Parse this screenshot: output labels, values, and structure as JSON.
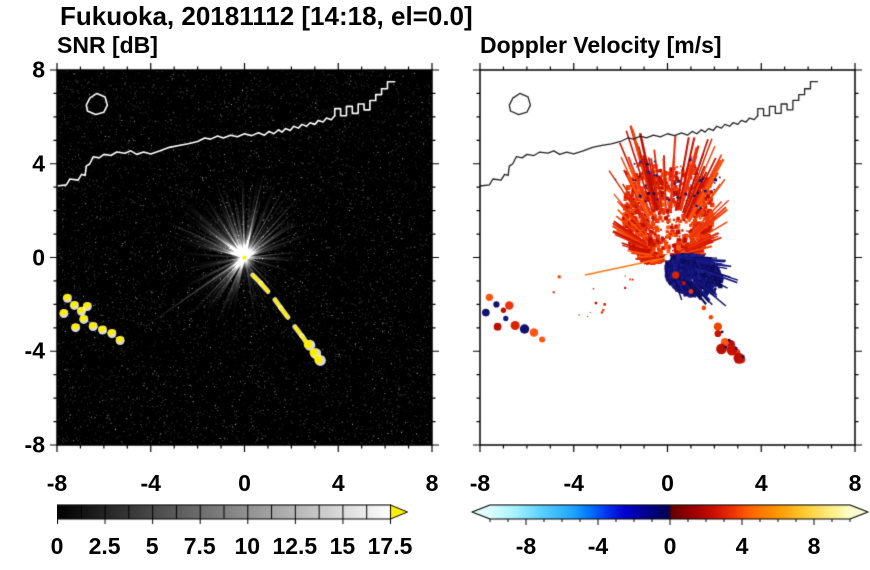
{
  "title": "Fukuoka, 20181112 [14:18, el=0.0]",
  "title_parts": {
    "site": "Fukuoka",
    "date": "20181112",
    "time": "14:18",
    "elevation": "0.0"
  },
  "chart_data": [
    {
      "type": "heatmap",
      "panel": "left",
      "title": "SNR [dB]",
      "xlim": [
        -8,
        8
      ],
      "ylim": [
        -8,
        8
      ],
      "x_ticks": [
        -8,
        -4,
        0,
        4,
        8
      ],
      "y_ticks": [
        8,
        4,
        0,
        -4,
        -8
      ],
      "x_tick_labels": [
        "-8",
        "-4",
        "0",
        "4",
        "8"
      ],
      "y_tick_labels": [
        "8",
        "4",
        "0",
        "-4",
        "-8"
      ],
      "minor_tick_step": 1,
      "background_color": "#000000",
      "colorbar": {
        "min": 0,
        "max": 17.5,
        "tick_labels": [
          "0",
          "2.5",
          "5",
          "7.5",
          "10",
          "12.5",
          "15",
          "17.5"
        ],
        "segment_step": 1.25,
        "stops": [
          {
            "v": 0,
            "c": "#000000"
          },
          {
            "v": 17.5,
            "c": "#ffffff"
          }
        ],
        "over_arrow_color": "#ffef00"
      },
      "features": [
        "radar located at origin (0,0) with bright white radial beam streaks, strongest toward the northern sector and a long thin ray toward (-4.4,-3.1)",
        "speckled dark noise background filling the 16x16 domain",
        "high-SNR yellow echo arc from about (0.35,-0.75) to (3.2,-4.4) with white fringes",
        "yellow coastal clutter patches between (-7.7,-1.7) and (-5.3,-3.5)",
        "white coastline with harbor structures across the top of the panel from y=3 to y=7.5",
        "small island outline near (-6.3, 6.6)"
      ]
    },
    {
      "type": "heatmap",
      "panel": "right",
      "title": "Doppler Velocity [m/s]",
      "xlim": [
        -8,
        8
      ],
      "ylim": [
        -8,
        8
      ],
      "x_ticks": [
        -8,
        -4,
        0,
        4,
        8
      ],
      "x_tick_labels": [
        "-8",
        "-4",
        "0",
        "4",
        "8"
      ],
      "minor_tick_step": 1,
      "background_color": "#ffffff",
      "colorbar": {
        "min": -10,
        "max": 10,
        "tick_labels": [
          "-8",
          "-4",
          "0",
          "4",
          "8"
        ],
        "under_arrow_color": "#dcffff",
        "over_arrow_color": "#ffffd0",
        "stops": [
          {
            "v": -10,
            "c": "#dcffff"
          },
          {
            "v": -8.5,
            "c": "#a0f0ff"
          },
          {
            "v": -7,
            "c": "#55ccff"
          },
          {
            "v": -5.5,
            "c": "#22aaff"
          },
          {
            "v": -4.5,
            "c": "#0077ff"
          },
          {
            "v": -3.5,
            "c": "#0033ee"
          },
          {
            "v": -2.5,
            "c": "#0000cc"
          },
          {
            "v": -1.2,
            "c": "#000088"
          },
          {
            "v": -0.1,
            "c": "#000055"
          },
          {
            "v": 0.1,
            "c": "#660000"
          },
          {
            "v": 1.2,
            "c": "#990000"
          },
          {
            "v": 2.5,
            "c": "#cc1100"
          },
          {
            "v": 3.5,
            "c": "#ee3300"
          },
          {
            "v": 4.5,
            "c": "#ff6600"
          },
          {
            "v": 6,
            "c": "#ff9900"
          },
          {
            "v": 7.5,
            "c": "#ffcc33"
          },
          {
            "v": 9,
            "c": "#ffee88"
          },
          {
            "v": 10,
            "c": "#ffffcc"
          }
        ]
      },
      "features": [
        "red/orange positive Doppler velocities in a jagged fan north and northwest of the radar out to about 4 units",
        "dark navy negative Doppler velocities in a compact sector east-southeast of the radar out to about 2.6 units",
        "scattered navy specks embedded near the outer edge of the red fan",
        "red echo arc from the radar toward (3.2,-4.4) matching the SNR arc",
        "mixed red and navy clutter patches near (-7,-2) to (-5.5,-3.5) and near (2.2,-3.3) to (3,-4.3)",
        "thin orange radial ray toward azimuth ~192 degrees reaching about (-3.5,-0.8)",
        "dark gray coastline drawn over white background"
      ]
    }
  ]
}
